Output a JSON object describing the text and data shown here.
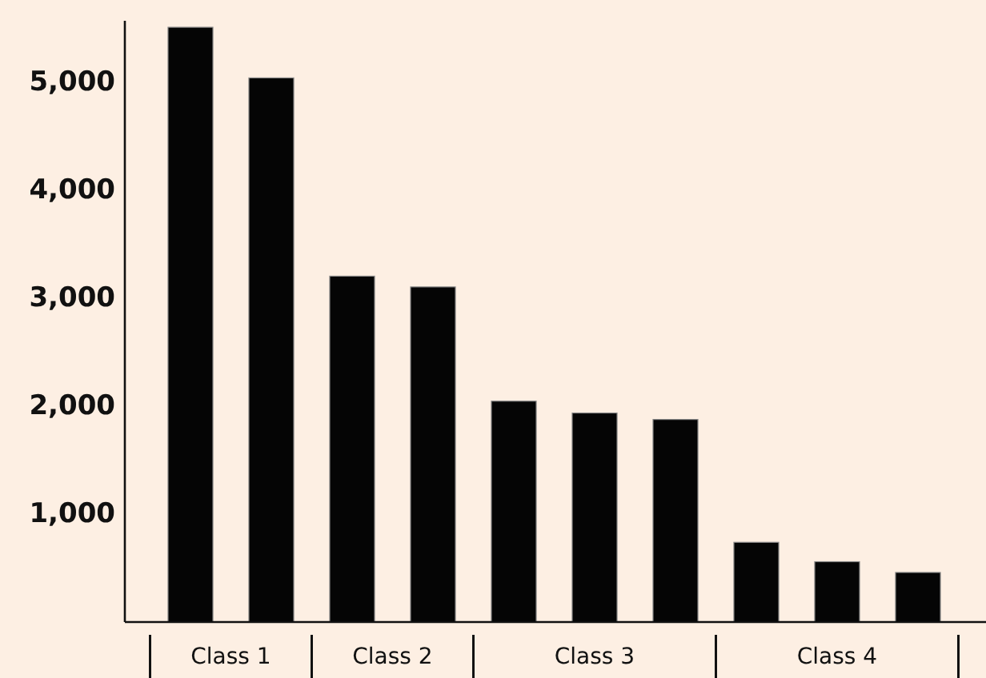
{
  "chart_data": {
    "type": "bar",
    "categories": [
      "Class 1",
      "Class 2",
      "Class 3",
      "Class 4"
    ],
    "series": [
      {
        "color": "#050505",
        "values": [
          5520,
          3210,
          2050,
          740
        ]
      },
      {
        "color": "#050505",
        "values": [
          5050,
          3110,
          1940,
          560
        ]
      },
      {
        "color": "#050505",
        "values": [
          null,
          null,
          1880,
          460
        ]
      }
    ],
    "ylim": [
      0,
      5580
    ],
    "yticks": [
      {
        "value": 1000,
        "label": "1,000"
      },
      {
        "value": 2000,
        "label": "2,000"
      },
      {
        "value": 3000,
        "label": "3,000"
      },
      {
        "value": 4000,
        "label": "4,000"
      },
      {
        "value": 5000,
        "label": "5,000"
      }
    ],
    "grid": false
  }
}
